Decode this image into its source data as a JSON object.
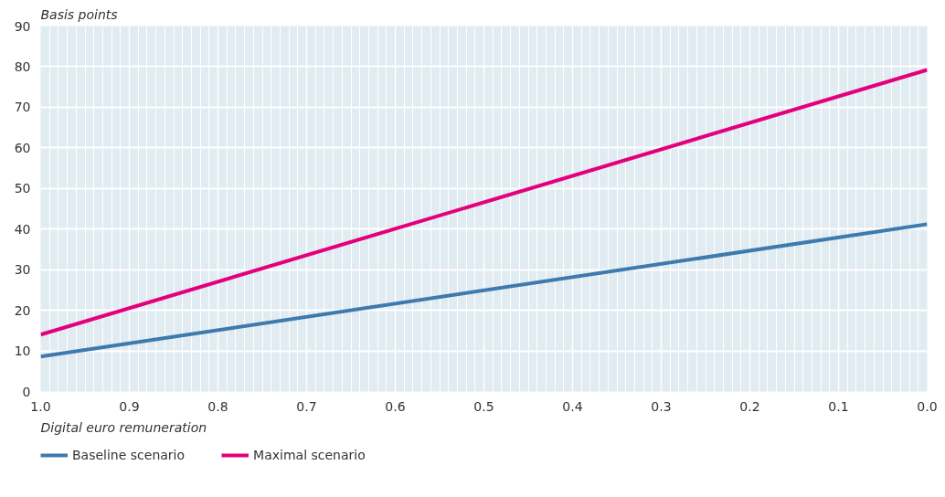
{
  "chart_data": {
    "type": "line",
    "xlabel": "Digital euro remuneration",
    "ylabel": "Basis points",
    "x": [
      1.0,
      0.0
    ],
    "series": [
      {
        "name": "Baseline scenario",
        "color": "#3d7aad",
        "values": [
          8.6,
          41.2
        ]
      },
      {
        "name": "Maximal scenario",
        "color": "#e4007c",
        "values": [
          14,
          79.2
        ]
      }
    ],
    "xlim": [
      1.0,
      0.0
    ],
    "xticks": [
      {
        "value": 1.0,
        "label": "1.0"
      },
      0.9,
      0.8,
      0.7,
      0.6,
      0.5,
      0.4,
      0.3,
      0.2,
      0.1,
      {
        "value": 0.0,
        "label": "0.0"
      }
    ],
    "ylim": [
      0,
      90
    ],
    "yticks": [
      0,
      10,
      20,
      30,
      40,
      50,
      60,
      70,
      80,
      90
    ],
    "grid": true,
    "legend": "bottom",
    "line_style": "solid",
    "marker": "none"
  }
}
